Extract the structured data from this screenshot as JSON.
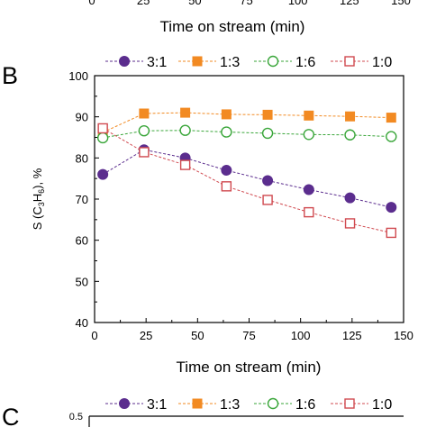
{
  "top_partial": {
    "xlabel": "Time on stream (min)",
    "tick_labels": [
      "0",
      "25",
      "50",
      "75",
      "100",
      "125",
      "150"
    ]
  },
  "panel_b": {
    "panel_label": "B",
    "ylabel_prefix": "S (C",
    "ylabel_sub1": "3",
    "ylabel_mid": "H",
    "ylabel_sub2": "6",
    "ylabel_suffix": "), %"
  },
  "panel_c": {
    "panel_label": "C",
    "first_tick": "0.5"
  },
  "legend": [
    {
      "name": "3:1",
      "color": "#5b2d8e",
      "marker": "filled-circle"
    },
    {
      "name": "1:3",
      "color": "#f28a22",
      "marker": "filled-square"
    },
    {
      "name": "1:6",
      "color": "#3aa63a",
      "marker": "open-circle"
    },
    {
      "name": "1:0",
      "color": "#d0494f",
      "marker": "open-square"
    }
  ],
  "chart_data": {
    "type": "line",
    "xlabel": "Time on stream (min)",
    "ylabel": "S (C3H6), %",
    "xlim": [
      0,
      150
    ],
    "ylim": [
      40,
      100
    ],
    "xticks": [
      0,
      25,
      50,
      75,
      100,
      125,
      150
    ],
    "yticks": [
      40,
      50,
      60,
      70,
      80,
      90,
      100
    ],
    "legend_position": "top",
    "grid": false,
    "series": [
      {
        "name": "3:1",
        "x": [
          4,
          24,
          44,
          64,
          84,
          104,
          124,
          144
        ],
        "y": [
          76,
          82,
          80,
          77,
          74.5,
          72.3,
          70.3,
          68
        ]
      },
      {
        "name": "1:3",
        "x": [
          4,
          24,
          44,
          64,
          84,
          104,
          124,
          144
        ],
        "y": [
          86.2,
          90.8,
          91,
          90.6,
          90.5,
          90.3,
          90.1,
          89.8
        ]
      },
      {
        "name": "1:6",
        "x": [
          4,
          24,
          44,
          64,
          84,
          104,
          124,
          144
        ],
        "y": [
          84.9,
          86.6,
          86.7,
          86.3,
          86,
          85.7,
          85.6,
          85.2
        ]
      },
      {
        "name": "1:0",
        "x": [
          4,
          24,
          44,
          64,
          84,
          104,
          124,
          144
        ],
        "y": [
          87.2,
          81.4,
          78.3,
          73.1,
          69.8,
          66.8,
          64.1,
          61.8
        ]
      }
    ]
  }
}
